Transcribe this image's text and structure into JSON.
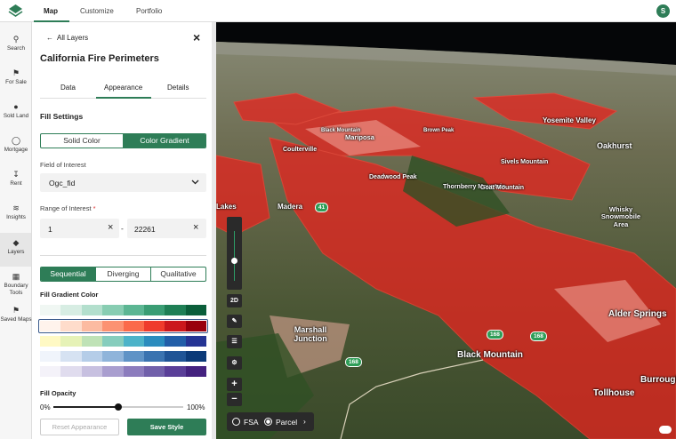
{
  "nav": {
    "tabs": [
      "Map",
      "Customize",
      "Portfolio"
    ],
    "user_initial": "S"
  },
  "sidebar": {
    "items": [
      "Search",
      "For Sale",
      "Sold Land",
      "Mortgage",
      "Rent",
      "Insights",
      "Layers",
      "Boundary Tools",
      "Saved Maps"
    ]
  },
  "panel": {
    "back": "All Layers",
    "title": "California Fire Perimeters",
    "tabs": [
      "Data",
      "Appearance",
      "Details"
    ],
    "fill_settings": "Fill Settings",
    "fill_modes": [
      "Solid Color",
      "Color Gradient"
    ],
    "field_label": "Field of Interest",
    "field_value": "Ogc_fid",
    "range_label": "Range of Interest",
    "range_required": "*",
    "range_min": "1",
    "range_separator": "-",
    "range_max": "22261",
    "schemes": [
      "Sequential",
      "Diverging",
      "Qualitative"
    ],
    "gradient_label": "Fill Gradient Color",
    "palettes": [
      [
        "#f0f7f3",
        "#d7ede3",
        "#b3dfcd",
        "#88cdb2",
        "#5cb693",
        "#3a9d74",
        "#1f7f55",
        "#0b5e3a"
      ],
      [
        "#fff3ec",
        "#fedccb",
        "#fcbba1",
        "#fc9272",
        "#fb6a4a",
        "#ef3b2c",
        "#cb181d",
        "#99000d"
      ],
      [
        "#fff9c4",
        "#e6f2b7",
        "#bfe2b6",
        "#86cdbd",
        "#4cb3c9",
        "#2b8cbe",
        "#225ea8",
        "#253494"
      ],
      [
        "#f0f4fb",
        "#d6e2f2",
        "#b5cde8",
        "#8fb4da",
        "#5f93c6",
        "#3a73b0",
        "#1f5496",
        "#0b3a78"
      ],
      [
        "#f4f2f9",
        "#e0dcee",
        "#c7c0e0",
        "#a99ecf",
        "#8c7cbd",
        "#7160aa",
        "#5a3f98",
        "#44227f"
      ]
    ],
    "opacity_label": "Fill Opacity",
    "opacity_min": "0%",
    "opacity_max": "100%",
    "reset": "Reset Appearance",
    "save": "Save Style"
  },
  "map": {
    "labels": [
      "Yosemite Valley",
      "Mariposa",
      "Coulterville",
      "Black Mountain",
      "Brown Peak",
      "Deadwood Peak",
      "Sivels Mountain",
      "Thornberry Mountain",
      "Goat Mountain",
      "Madera",
      "Lakes",
      "Oakhurst",
      "Whisky Snowmobile Area",
      "Marshall Junction",
      "Black Mountain",
      "Alder Springs",
      "Tollhouse",
      "Burrough Mountain"
    ],
    "shields": [
      "41",
      "168",
      "168",
      "168"
    ],
    "view_toggle": "2D",
    "layer_options": [
      "FSA",
      "Parcel"
    ]
  }
}
